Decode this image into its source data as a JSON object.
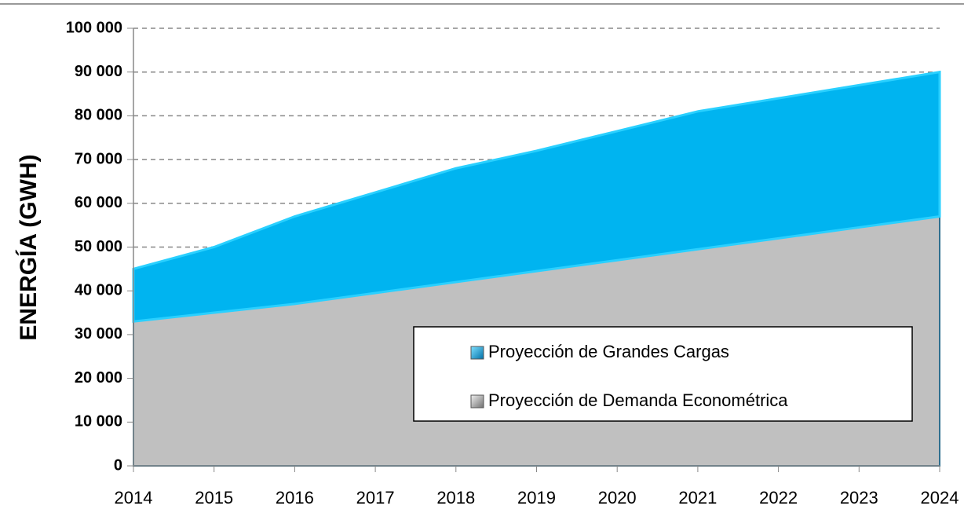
{
  "chart_data": {
    "type": "area",
    "ylabel": "ENERGÍA (GWH)",
    "x": [
      2014,
      2015,
      2016,
      2017,
      2018,
      2019,
      2020,
      2021,
      2022,
      2023,
      2024
    ],
    "xlim": [
      2014,
      2024
    ],
    "xticks": [
      2014,
      2015,
      2016,
      2017,
      2018,
      2019,
      2020,
      2021,
      2022,
      2023,
      2024
    ],
    "ylim": [
      0,
      100000
    ],
    "yticks": [
      0,
      {
        "value": 10000,
        "label": "10 000"
      },
      {
        "value": 20000,
        "label": "20 000"
      },
      {
        "value": 30000,
        "label": "30 000"
      },
      {
        "value": 40000,
        "label": "40 000"
      },
      {
        "value": 50000,
        "label": "50 000"
      },
      {
        "value": 60000,
        "label": "60 000"
      },
      {
        "value": 70000,
        "label": "70 000"
      },
      {
        "value": 80000,
        "label": "80 000"
      },
      {
        "value": 90000,
        "label": "90 000"
      },
      {
        "value": 100000,
        "label": "100 000"
      }
    ],
    "grid": true,
    "stacked": true,
    "series": [
      {
        "name": "Proyección de Demanda Econométrica",
        "color": "#c0c0c0",
        "values": [
          33000,
          35000,
          37000,
          39500,
          42000,
          44500,
          47000,
          49500,
          52000,
          54500,
          57000
        ]
      },
      {
        "name": "Proyección de Grandes Cargas",
        "color": "#00b4f0",
        "values": [
          12000,
          15000,
          20000,
          23000,
          26000,
          27500,
          29500,
          31500,
          32000,
          32500,
          33000
        ]
      }
    ]
  }
}
